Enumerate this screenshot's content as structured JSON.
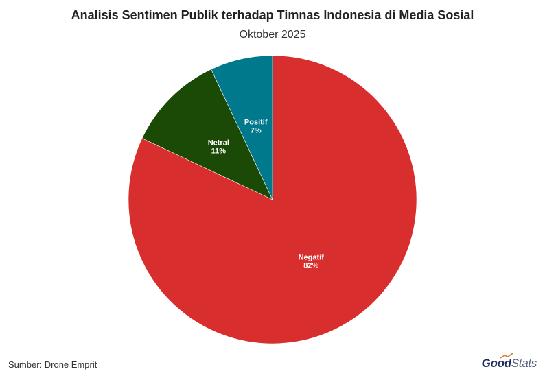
{
  "header": {
    "title": "Analisis Sentimen Publik terhadap Timnas Indonesia di Media Sosial",
    "subtitle": "Oktober 2025"
  },
  "footer": {
    "source": "Sumber: Drone Emprit",
    "brand_good": "Good",
    "brand_stats": "Stats"
  },
  "chart_data": {
    "type": "pie",
    "title": "Analisis Sentimen Publik terhadap Timnas Indonesia di Media Sosial",
    "subtitle": "Oktober 2025",
    "start": "12 o'clock",
    "direction": "clockwise",
    "slices": [
      {
        "label": "Negatif",
        "value": 82,
        "value_label": "82%",
        "color": "#d92e2e"
      },
      {
        "label": "Netral",
        "value": 11,
        "value_label": "11%",
        "color": "#1b4a06"
      },
      {
        "label": "Positif",
        "value": 7,
        "value_label": "7%",
        "color": "#00798c"
      }
    ]
  }
}
